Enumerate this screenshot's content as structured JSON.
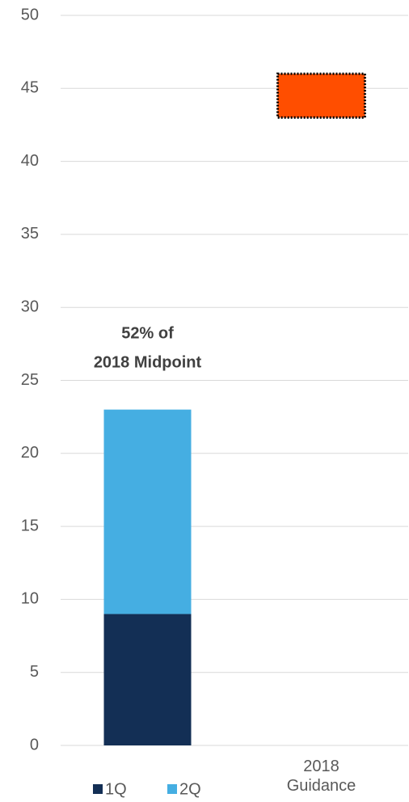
{
  "chart_data": {
    "type": "stacked_bar_range",
    "categories": [
      null,
      "2018 Guidance"
    ],
    "series": [
      {
        "name": "1Q",
        "color": "#132f55",
        "values": [
          9,
          null
        ]
      },
      {
        "name": "2Q",
        "color": "#45aee2",
        "values": [
          14,
          null
        ]
      }
    ],
    "range_low": [
      null,
      43
    ],
    "range_high": [
      null,
      46
    ],
    "range_color": "#ff4e00",
    "annotation": [
      "52% of",
      "2018 Midpoint"
    ],
    "ylim": [
      0,
      50
    ],
    "yticks": [
      0,
      5,
      10,
      15,
      20,
      25,
      30,
      35,
      40,
      45,
      50
    ],
    "grid": true,
    "legend": "bottom"
  }
}
